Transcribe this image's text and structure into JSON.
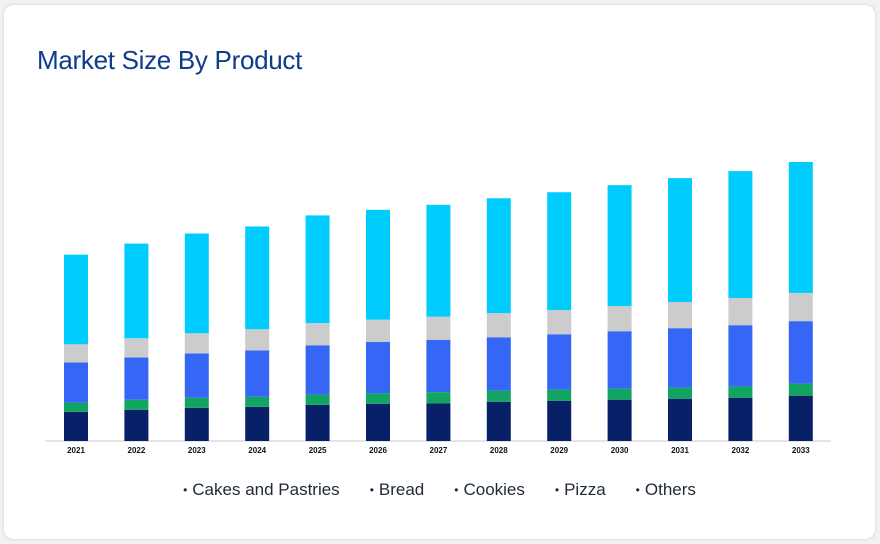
{
  "title": "Market Size By Product",
  "chart_data": {
    "type": "bar",
    "stacked": true,
    "categories": [
      "2021",
      "2022",
      "2023",
      "2024",
      "2025",
      "2026",
      "2027",
      "2028",
      "2029",
      "2030",
      "2031",
      "2032",
      "2033"
    ],
    "series": [
      {
        "name": "Others",
        "color": "#072068",
        "values": [
          29,
          31,
          33,
          34,
          36,
          37,
          37.5,
          39,
          40,
          41,
          42,
          43,
          45
        ]
      },
      {
        "name": "Pizza",
        "color": "#12a561",
        "values": [
          9,
          10,
          10,
          10,
          10,
          10.5,
          11,
          11,
          11,
          11,
          11,
          11,
          12
        ]
      },
      {
        "name": "Bread",
        "color": "#3566f5",
        "values": [
          40,
          42,
          44,
          46,
          49,
          51,
          52,
          53,
          55,
          57,
          59,
          61,
          62
        ]
      },
      {
        "name": "Cookies",
        "color": "#cccccc",
        "values": [
          18,
          19,
          20,
          21,
          22,
          22,
          23,
          24,
          24,
          25,
          26,
          27,
          28
        ]
      },
      {
        "name": "Cakes and Pastries",
        "color": "#00cdfd",
        "values": [
          89,
          94,
          99,
          102,
          107,
          109,
          111,
          114,
          117,
          120,
          123,
          126,
          130
        ]
      }
    ],
    "ylim": [
      0,
      280
    ],
    "grid": false,
    "legend_position": "bottom"
  },
  "legend": [
    {
      "label": "Cakes and Pastries"
    },
    {
      "label": "Bread"
    },
    {
      "label": "Cookies"
    },
    {
      "label": "Pizza"
    },
    {
      "label": "Others"
    }
  ]
}
